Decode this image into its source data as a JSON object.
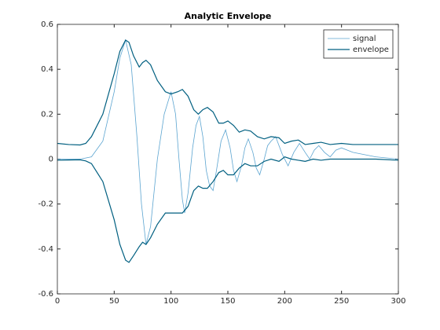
{
  "chart_data": {
    "type": "line",
    "title": "Analytic Envelope",
    "xlim": [
      0,
      300
    ],
    "xticks": [
      0,
      50,
      100,
      150,
      200,
      250,
      300
    ],
    "ylim": [
      -0.6,
      0.6
    ],
    "yticks": [
      -0.6,
      -0.4,
      -0.2,
      0,
      0.2,
      0.4,
      0.6
    ],
    "legend": "upper-right",
    "series": [
      {
        "name": "signal",
        "color": "#5ba4d0",
        "x": [
          0,
          20,
          30,
          40,
          50,
          55,
          60,
          65,
          70,
          74,
          78,
          82,
          88,
          94,
          100,
          104,
          107,
          110,
          112,
          115,
          119,
          122,
          125,
          128,
          131,
          134,
          137,
          140,
          144,
          148,
          152,
          155,
          158,
          162,
          165,
          168,
          172,
          175,
          178,
          182,
          185,
          188,
          192,
          198,
          203,
          208,
          213,
          218,
          222,
          226,
          230,
          235,
          240,
          245,
          250,
          260,
          270,
          280,
          300
        ],
        "values": [
          0,
          0,
          0.01,
          0.08,
          0.3,
          0.45,
          0.53,
          0.42,
          0.1,
          -0.2,
          -0.38,
          -0.3,
          0,
          0.2,
          0.3,
          0.2,
          0,
          -0.18,
          -0.24,
          -0.15,
          0.05,
          0.15,
          0.19,
          0.1,
          -0.05,
          -0.12,
          -0.14,
          -0.05,
          0.08,
          0.13,
          0.05,
          -0.05,
          -0.1,
          -0.03,
          0.05,
          0.09,
          0.03,
          -0.04,
          -0.07,
          0,
          0.06,
          0.08,
          0.1,
          0.02,
          -0.03,
          0.03,
          0.07,
          0.03,
          0,
          0.04,
          0.06,
          0.03,
          0.01,
          0.04,
          0.05,
          0.03,
          0.02,
          0.01,
          0
        ]
      },
      {
        "name": "envelope",
        "color": "#005f80",
        "x": [
          0,
          10,
          20,
          25,
          30,
          40,
          50,
          55,
          60,
          63,
          67,
          72,
          75,
          78,
          82,
          88,
          95,
          100,
          106,
          110,
          115,
          120,
          124,
          128,
          132,
          137,
          142,
          146,
          150,
          155,
          160,
          165,
          170,
          176,
          182,
          188,
          195,
          200,
          206,
          212,
          218,
          225,
          232,
          240,
          250,
          260,
          280,
          300
        ],
        "values": [
          0.07,
          0.065,
          0.063,
          0.07,
          0.1,
          0.2,
          0.38,
          0.48,
          0.53,
          0.52,
          0.46,
          0.41,
          0.43,
          0.44,
          0.42,
          0.35,
          0.3,
          0.29,
          0.3,
          0.31,
          0.28,
          0.22,
          0.2,
          0.22,
          0.23,
          0.21,
          0.16,
          0.16,
          0.17,
          0.15,
          0.12,
          0.13,
          0.125,
          0.1,
          0.09,
          0.1,
          0.095,
          0.07,
          0.08,
          0.085,
          0.065,
          0.07,
          0.075,
          0.065,
          0.07,
          0.065,
          0.065,
          0.065
        ],
        "lower_values": [
          -0.005,
          -0.004,
          -0.003,
          -0.008,
          -0.02,
          -0.1,
          -0.27,
          -0.38,
          -0.45,
          -0.46,
          -0.43,
          -0.39,
          -0.37,
          -0.38,
          -0.35,
          -0.29,
          -0.24,
          -0.24,
          -0.24,
          -0.24,
          -0.21,
          -0.14,
          -0.12,
          -0.13,
          -0.13,
          -0.1,
          -0.06,
          -0.05,
          -0.07,
          -0.07,
          -0.04,
          -0.02,
          -0.03,
          -0.03,
          -0.01,
          0,
          -0.01,
          0.01,
          0,
          -0.005,
          -0.01,
          0,
          -0.005,
          0,
          0,
          0,
          0,
          -0.005
        ]
      }
    ]
  }
}
